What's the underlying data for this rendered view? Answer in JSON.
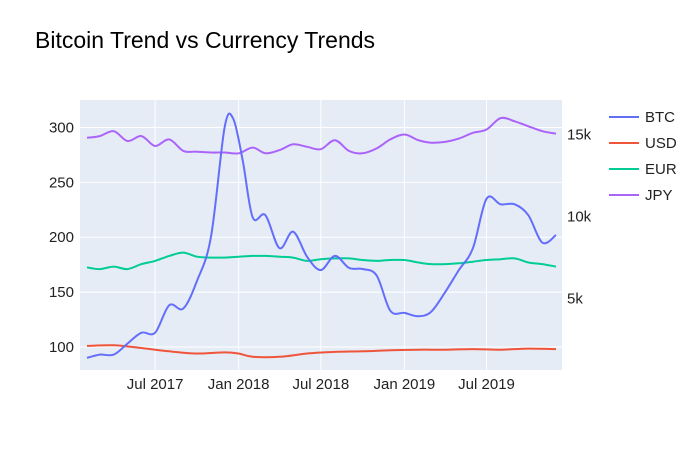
{
  "chart_data": {
    "type": "line",
    "title": "Bitcoin Trend vs Currency Trends",
    "xlabel": "",
    "ylabel": "",
    "x_ticks": [
      "Jul 2017",
      "Jan 2018",
      "Jul 2018",
      "Jan 2019",
      "Jul 2019"
    ],
    "y_left": {
      "range": [
        79,
        325
      ],
      "ticks": [
        100,
        150,
        200,
        250,
        300
      ]
    },
    "y_right": {
      "range": [
        650,
        17100
      ],
      "ticks": [
        5000,
        10000,
        15000
      ],
      "tick_labels": [
        "5k",
        "10k",
        "15k"
      ]
    },
    "grid": true,
    "legend_position": "right",
    "series": [
      {
        "name": "BTC",
        "axis": "left",
        "color": "#636efa",
        "x": [
          "2017-02-01",
          "2017-03-01",
          "2017-04-01",
          "2017-05-01",
          "2017-06-01",
          "2017-07-01",
          "2017-08-01",
          "2017-09-01",
          "2017-10-01",
          "2017-11-01",
          "2017-12-01",
          "2017-12-20",
          "2018-01-10",
          "2018-02-01",
          "2018-03-01",
          "2018-04-01",
          "2018-05-01",
          "2018-06-01",
          "2018-07-01",
          "2018-08-01",
          "2018-09-01",
          "2018-10-01",
          "2018-11-01",
          "2018-12-01",
          "2019-01-01",
          "2019-02-01",
          "2019-03-01",
          "2019-04-01",
          "2019-05-01",
          "2019-06-01",
          "2019-07-01",
          "2019-08-01",
          "2019-09-01",
          "2019-10-01",
          "2019-11-01",
          "2019-12-01"
        ],
        "y": [
          90,
          93,
          93,
          103,
          113,
          113,
          138,
          135,
          160,
          200,
          300,
          308,
          270,
          218,
          220,
          190,
          205,
          182,
          170,
          183,
          172,
          171,
          165,
          133,
          131,
          128,
          132,
          150,
          170,
          190,
          235,
          230,
          230,
          220,
          195,
          202
        ]
      },
      {
        "name": "USD",
        "axis": "left",
        "color": "#ef553b",
        "x": [
          "2017-02-01",
          "2017-04-01",
          "2017-06-01",
          "2017-08-01",
          "2017-10-01",
          "2017-12-01",
          "2018-01-01",
          "2018-02-01",
          "2018-04-01",
          "2018-06-01",
          "2018-08-01",
          "2018-10-01",
          "2018-12-01",
          "2019-02-01",
          "2019-04-01",
          "2019-06-01",
          "2019-08-01",
          "2019-10-01",
          "2019-12-01"
        ],
        "y": [
          101,
          101.5,
          99,
          96,
          94,
          95,
          94,
          91,
          91,
          94,
          95.5,
          96,
          97,
          97.5,
          97.5,
          98,
          97.5,
          98.5,
          98
        ]
      },
      {
        "name": "EUR",
        "axis": "right",
        "color": "#00cc96",
        "x": [
          "2017-02-01",
          "2017-03-01",
          "2017-04-01",
          "2017-05-01",
          "2017-06-01",
          "2017-07-01",
          "2017-08-01",
          "2017-09-01",
          "2017-10-01",
          "2017-11-01",
          "2017-12-01",
          "2018-01-01",
          "2018-02-01",
          "2018-03-01",
          "2018-04-01",
          "2018-05-01",
          "2018-06-01",
          "2018-07-01",
          "2018-08-01",
          "2018-09-01",
          "2018-10-01",
          "2018-11-01",
          "2018-12-01",
          "2019-01-01",
          "2019-02-01",
          "2019-03-01",
          "2019-04-01",
          "2019-05-01",
          "2019-06-01",
          "2019-07-01",
          "2019-08-01",
          "2019-09-01",
          "2019-10-01",
          "2019-11-01",
          "2019-12-01"
        ],
        "y": [
          6900,
          6800,
          6950,
          6800,
          7100,
          7300,
          7600,
          7800,
          7550,
          7500,
          7500,
          7550,
          7600,
          7600,
          7550,
          7500,
          7300,
          7400,
          7450,
          7450,
          7350,
          7300,
          7350,
          7350,
          7200,
          7100,
          7100,
          7150,
          7250,
          7350,
          7400,
          7450,
          7200,
          7100,
          6950
        ]
      },
      {
        "name": "JPY",
        "axis": "right",
        "color": "#ab63fa",
        "x": [
          "2017-02-01",
          "2017-03-01",
          "2017-04-01",
          "2017-05-01",
          "2017-06-01",
          "2017-07-01",
          "2017-08-01",
          "2017-09-01",
          "2017-10-01",
          "2017-11-01",
          "2017-12-01",
          "2018-01-01",
          "2018-02-01",
          "2018-03-01",
          "2018-04-01",
          "2018-05-01",
          "2018-06-01",
          "2018-07-01",
          "2018-08-01",
          "2018-09-01",
          "2018-10-01",
          "2018-11-01",
          "2018-12-01",
          "2019-01-01",
          "2019-02-01",
          "2019-03-01",
          "2019-04-01",
          "2019-05-01",
          "2019-06-01",
          "2019-07-01",
          "2019-08-01",
          "2019-09-01",
          "2019-10-01",
          "2019-11-01",
          "2019-12-01"
        ],
        "y": [
          14800,
          14900,
          15200,
          14600,
          14900,
          14300,
          14700,
          14000,
          13950,
          13900,
          13900,
          13850,
          14200,
          13850,
          14050,
          14400,
          14250,
          14100,
          14650,
          14000,
          13850,
          14150,
          14700,
          15000,
          14650,
          14500,
          14550,
          14750,
          15100,
          15300,
          16000,
          15800,
          15500,
          15200,
          15050
        ]
      }
    ]
  }
}
